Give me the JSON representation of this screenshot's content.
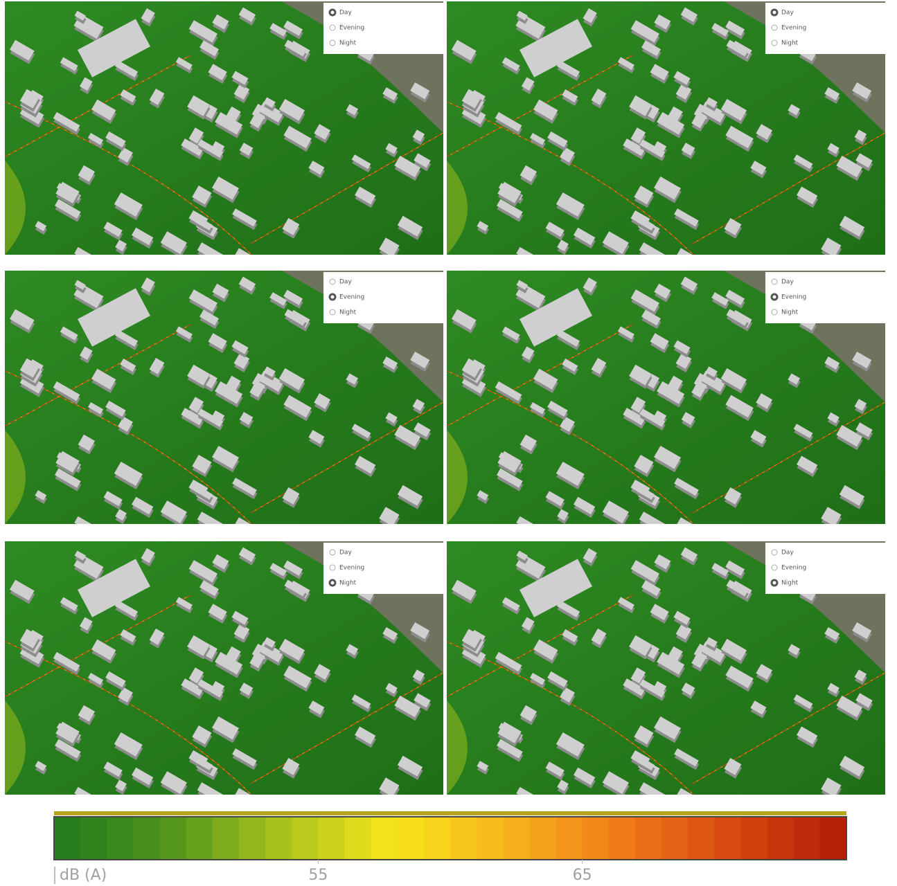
{
  "panels": [
    {
      "options": [
        "Day",
        "Evening",
        "Night"
      ],
      "selected": 0
    },
    {
      "options": [
        "Day",
        "Evening",
        "Night"
      ],
      "selected": 0
    },
    {
      "options": [
        "Day",
        "Evening",
        "Night"
      ],
      "selected": 1
    },
    {
      "options": [
        "Day",
        "Evening",
        "Night"
      ],
      "selected": 1
    },
    {
      "options": [
        "Day",
        "Evening",
        "Night"
      ],
      "selected": 2
    },
    {
      "options": [
        "Day",
        "Evening",
        "Night"
      ],
      "selected": 2
    }
  ],
  "legend": {
    "title": "dB (A)",
    "range": [
      45,
      75
    ],
    "ticks": [
      55,
      65
    ],
    "colors": [
      "#1f7a1c",
      "#4f941c",
      "#a9c21d",
      "#f7e51b",
      "#f6b51c",
      "#ee7b19",
      "#d84711",
      "#b01a06"
    ]
  }
}
